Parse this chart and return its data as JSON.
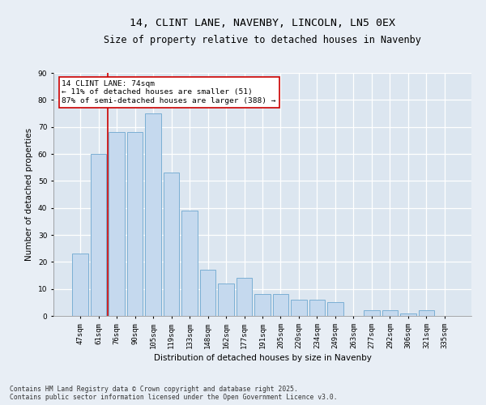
{
  "title1": "14, CLINT LANE, NAVENBY, LINCOLN, LN5 0EX",
  "title2": "Size of property relative to detached houses in Navenby",
  "xlabel": "Distribution of detached houses by size in Navenby",
  "ylabel": "Number of detached properties",
  "categories": [
    "47sqm",
    "61sqm",
    "76sqm",
    "90sqm",
    "105sqm",
    "119sqm",
    "133sqm",
    "148sqm",
    "162sqm",
    "177sqm",
    "191sqm",
    "205sqm",
    "220sqm",
    "234sqm",
    "249sqm",
    "263sqm",
    "277sqm",
    "292sqm",
    "306sqm",
    "321sqm",
    "335sqm"
  ],
  "values": [
    23,
    60,
    68,
    68,
    75,
    53,
    39,
    17,
    12,
    14,
    8,
    8,
    6,
    6,
    5,
    0,
    2,
    2,
    1,
    2,
    0
  ],
  "bar_color": "#c5d9ee",
  "bar_edge_color": "#7bafd4",
  "marker_line_color": "#cc0000",
  "annotation_text": "14 CLINT LANE: 74sqm\n← 11% of detached houses are smaller (51)\n87% of semi-detached houses are larger (388) →",
  "annotation_box_facecolor": "white",
  "annotation_box_edgecolor": "#cc0000",
  "ylim": [
    0,
    90
  ],
  "yticks": [
    0,
    10,
    20,
    30,
    40,
    50,
    60,
    70,
    80,
    90
  ],
  "plot_bg_color": "#dce6f0",
  "fig_bg_color": "#e8eef5",
  "grid_color": "#ffffff",
  "footer_text": "Contains HM Land Registry data © Crown copyright and database right 2025.\nContains public sector information licensed under the Open Government Licence v3.0.",
  "title_fontsize": 9.5,
  "subtitle_fontsize": 8.5,
  "axis_label_fontsize": 7.5,
  "tick_fontsize": 6.5,
  "ylabel_fontsize": 7.5,
  "annotation_fontsize": 6.8,
  "footer_fontsize": 5.8
}
